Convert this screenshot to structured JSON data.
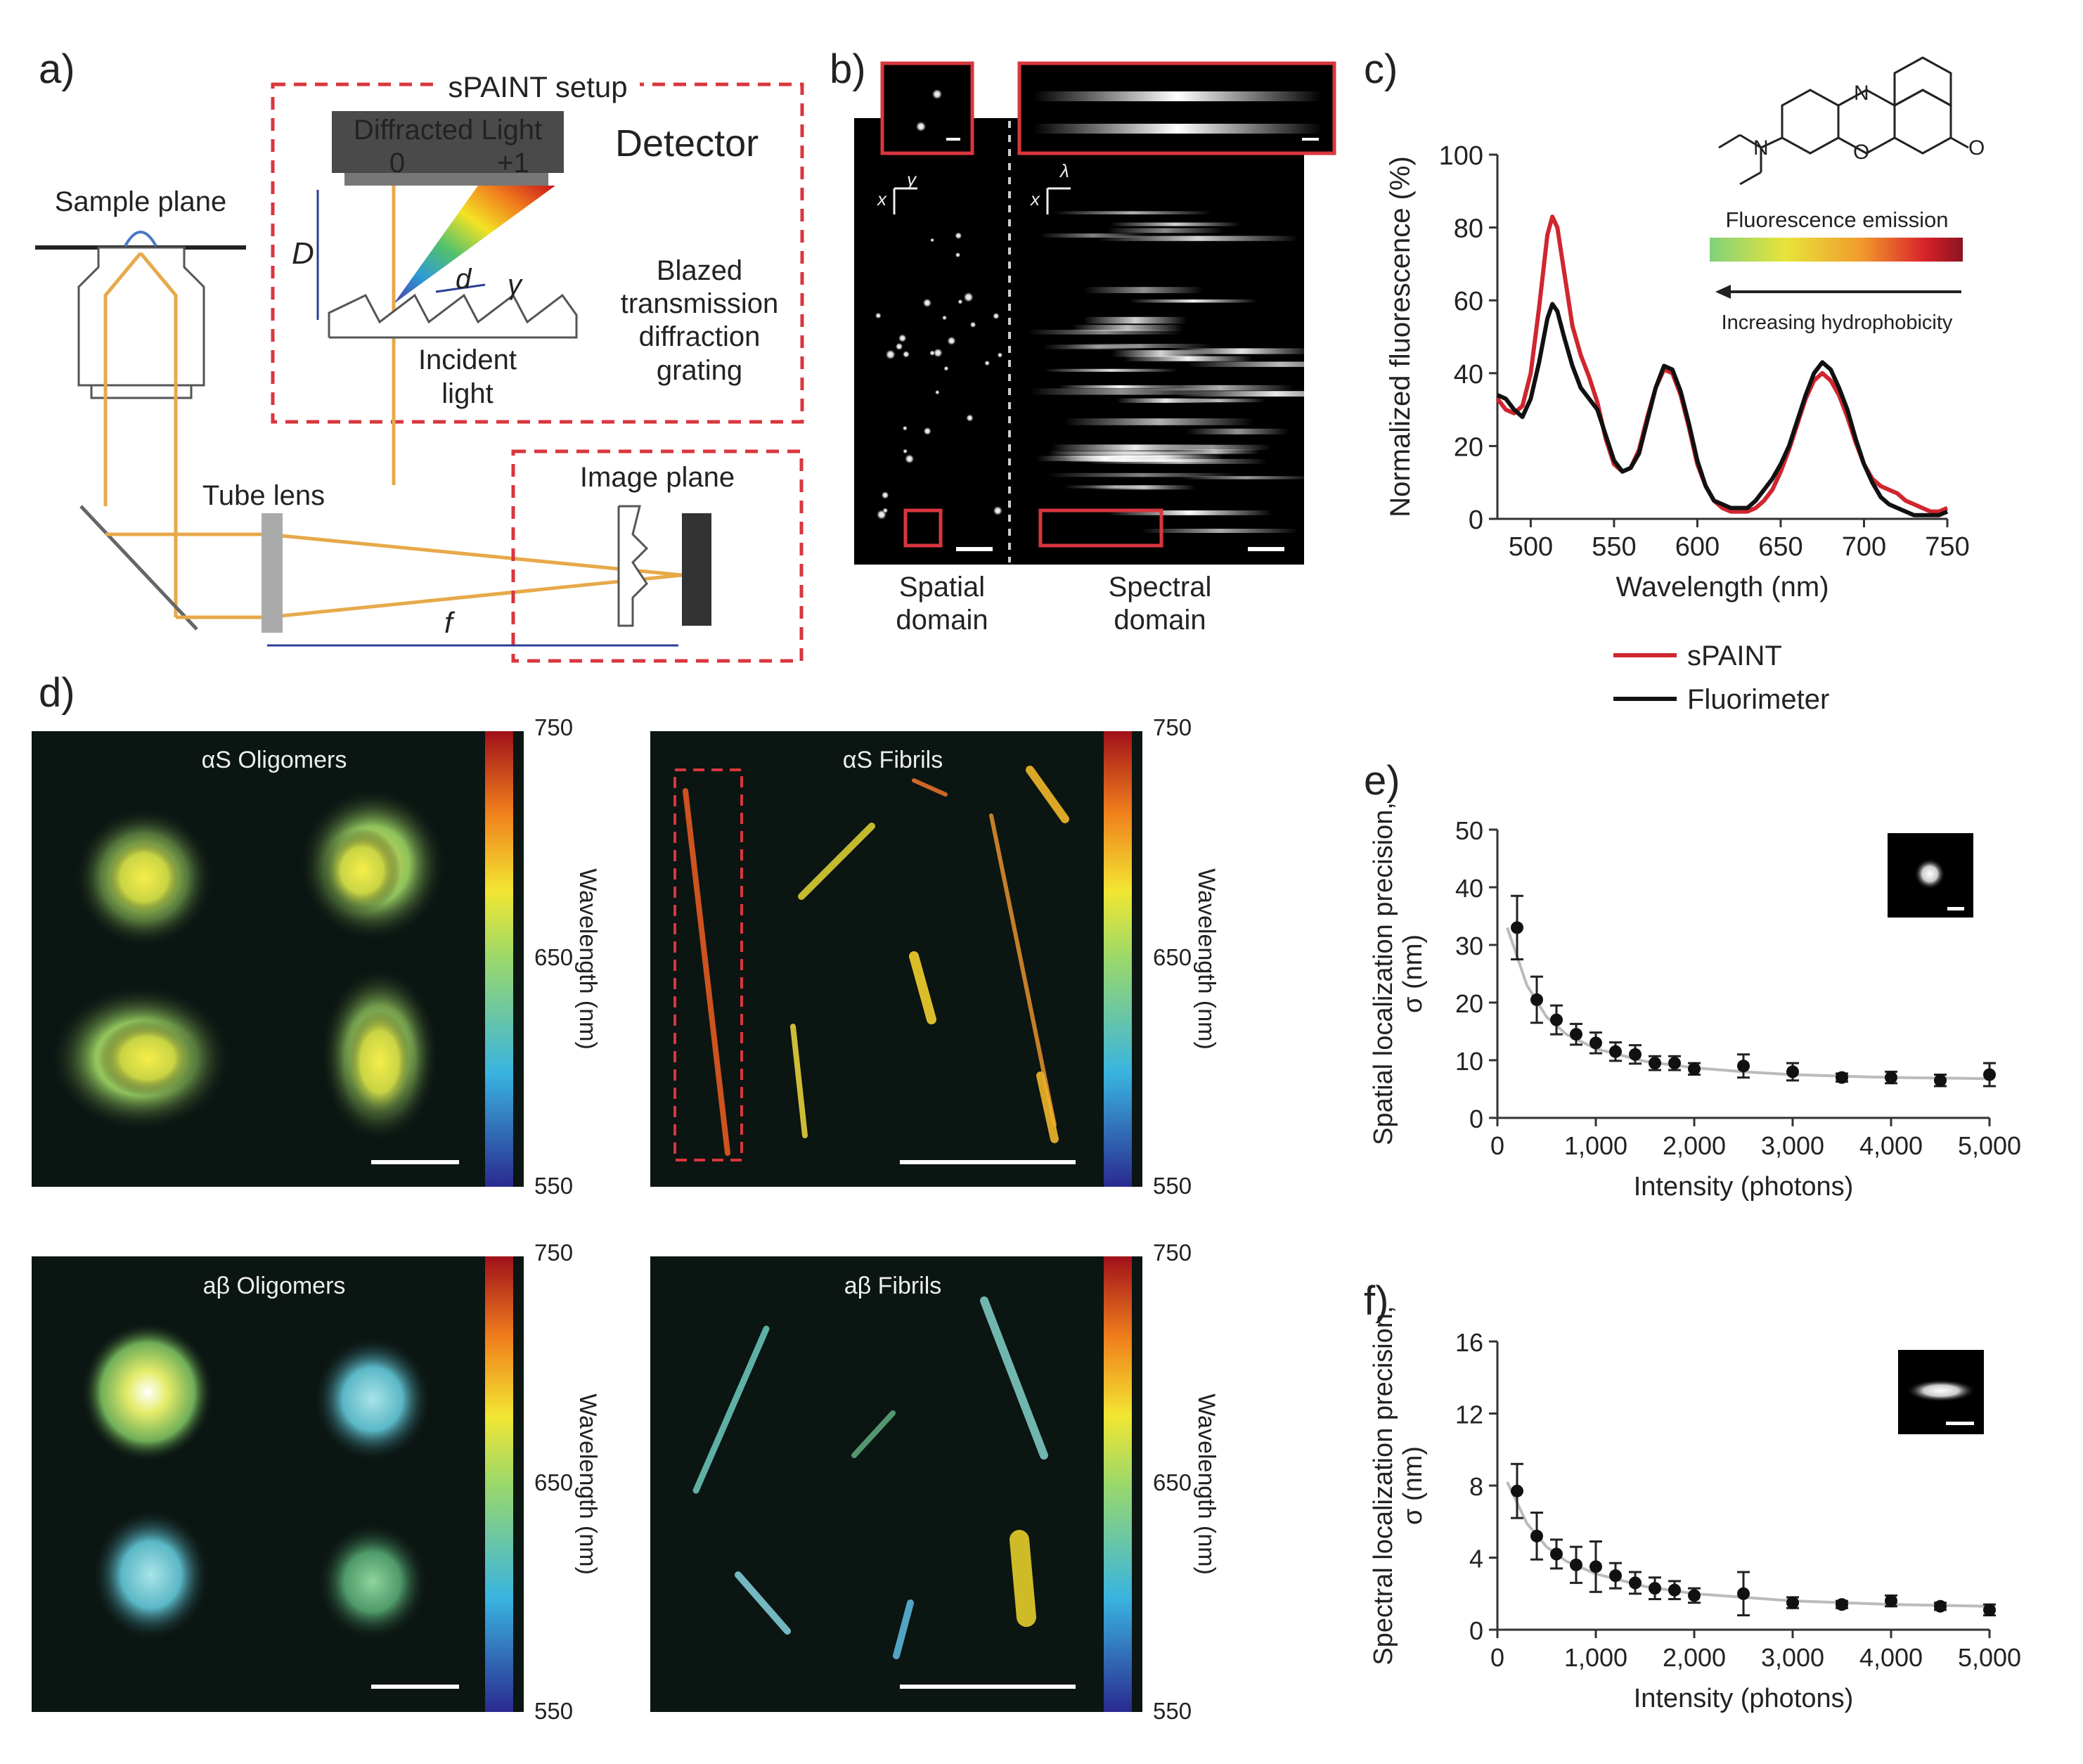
{
  "panels": {
    "a": {
      "label": "a)",
      "setup_title": "sPAINT setup",
      "detector_text": "Diffracted Light",
      "order0": "0",
      "order1": "+1",
      "detector": "Detector",
      "sample_plane": "Sample plane",
      "D": "D",
      "d": "d",
      "gamma": "γ",
      "incident1": "Incident",
      "incident2": "light",
      "grating1": "Blazed",
      "grating2": "transmission",
      "grating3": "diffraction",
      "grating4": "grating",
      "tube_lens": "Tube lens",
      "image_plane": "Image plane",
      "f": "f"
    },
    "b": {
      "label": "b)",
      "axis_y": "y",
      "axis_x": "x",
      "axis_lambda": "λ",
      "spatial1": "Spatial",
      "spatial2": "domain",
      "spectral1": "Spectral",
      "spectral2": "domain"
    },
    "c": {
      "label": "c)",
      "emission": "Fluorescence emission",
      "hydro": "Increasing hydrophobicity",
      "atom_N1": "N",
      "atom_N2": "N",
      "atom_O1": "O",
      "atom_O2": "O"
    },
    "d": {
      "label": "d)",
      "images": [
        {
          "title": "αS Oligomers",
          "cb_top": "750",
          "cb_mid": "650",
          "cb_bot": "550",
          "cb_label": "Wavelength (nm)"
        },
        {
          "title": "αS Fibrils",
          "cb_top": "750",
          "cb_mid": "650",
          "cb_bot": "550",
          "cb_label": "Wavelength (nm)"
        },
        {
          "title": "aβ Oligomers",
          "cb_top": "750",
          "cb_mid": "650",
          "cb_bot": "550",
          "cb_label": "Wavelength (nm)"
        },
        {
          "title": "aβ Fibrils",
          "cb_top": "750",
          "cb_mid": "650",
          "cb_bot": "550",
          "cb_label": "Wavelength (nm)"
        }
      ]
    },
    "e": {
      "label": "e)"
    },
    "f": {
      "label": "f)"
    }
  },
  "chart_data": [
    {
      "id": "c",
      "type": "line",
      "xlabel": "Wavelength (nm)",
      "ylabel": "Normalized fluorescence (%)",
      "xlim": [
        480,
        750
      ],
      "ylim": [
        0,
        100
      ],
      "xticks": [
        "500",
        "550",
        "600",
        "650",
        "700",
        "750"
      ],
      "yticks": [
        "0",
        "20",
        "40",
        "60",
        "80",
        "100"
      ],
      "legend_position": "bottom",
      "series": [
        {
          "name": "sPAINT",
          "color": "#d0262f",
          "x": [
            480,
            485,
            490,
            495,
            500,
            505,
            510,
            513,
            516,
            520,
            525,
            530,
            535,
            540,
            545,
            550,
            555,
            560,
            565,
            570,
            575,
            580,
            585,
            590,
            595,
            600,
            605,
            610,
            615,
            620,
            625,
            630,
            635,
            640,
            645,
            650,
            655,
            660,
            665,
            670,
            675,
            680,
            685,
            690,
            695,
            700,
            705,
            710,
            715,
            720,
            725,
            730,
            735,
            740,
            745,
            750
          ],
          "y": [
            33,
            30,
            29,
            31,
            40,
            58,
            78,
            83,
            80,
            68,
            53,
            45,
            39,
            32,
            22,
            15,
            13,
            14,
            19,
            28,
            36,
            41,
            40,
            34,
            25,
            15,
            9,
            5,
            3,
            2,
            2,
            2,
            3,
            5,
            8,
            13,
            19,
            26,
            33,
            38,
            40,
            38,
            34,
            28,
            21,
            15,
            11,
            9,
            8,
            7,
            5,
            4,
            3,
            2,
            2,
            3
          ]
        },
        {
          "name": "Fluorimeter",
          "color": "#111111",
          "x": [
            480,
            485,
            490,
            495,
            500,
            505,
            510,
            513,
            516,
            520,
            525,
            530,
            535,
            540,
            545,
            550,
            555,
            560,
            565,
            570,
            575,
            580,
            585,
            590,
            595,
            600,
            605,
            610,
            615,
            620,
            625,
            630,
            635,
            640,
            645,
            650,
            655,
            660,
            665,
            670,
            675,
            680,
            685,
            690,
            695,
            700,
            705,
            710,
            715,
            720,
            725,
            730,
            735,
            740,
            745,
            750
          ],
          "y": [
            34,
            33,
            30,
            28,
            33,
            43,
            55,
            59,
            57,
            50,
            42,
            36,
            33,
            30,
            23,
            16,
            13,
            14,
            18,
            27,
            36,
            42,
            41,
            35,
            26,
            16,
            9,
            5,
            4,
            3,
            3,
            3,
            5,
            8,
            11,
            15,
            20,
            27,
            34,
            40,
            43,
            41,
            36,
            30,
            22,
            15,
            10,
            6,
            4,
            3,
            2,
            1,
            1,
            1,
            1,
            2
          ]
        }
      ]
    },
    {
      "id": "e",
      "type": "scatter",
      "xlabel": "Intensity (photons)",
      "ylabel": "Spatial localization precision, σ (nm)",
      "xlim": [
        0,
        5000
      ],
      "ylim": [
        0,
        50
      ],
      "xticks": [
        "0",
        "1,000",
        "2,000",
        "3,000",
        "4,000",
        "5,000"
      ],
      "yticks": [
        "0",
        "10",
        "20",
        "30",
        "40",
        "50"
      ],
      "x": [
        200,
        400,
        600,
        800,
        1000,
        1200,
        1400,
        1600,
        1800,
        2000,
        2500,
        3000,
        3500,
        4000,
        4500,
        5000
      ],
      "y": [
        33,
        20.5,
        17,
        14.5,
        13,
        11.5,
        11,
        9.5,
        9.5,
        8.5,
        9,
        8,
        7,
        7,
        6.5,
        7.5
      ],
      "err": [
        5.5,
        4,
        2.5,
        1.8,
        1.8,
        1.6,
        1.6,
        1.2,
        1.2,
        1,
        2,
        1.5,
        0.7,
        1,
        1,
        2
      ],
      "fit_x": [
        100,
        300,
        500,
        700,
        1000,
        1500,
        2000,
        2500,
        3000,
        4000,
        5000
      ],
      "fit_y": [
        33,
        23,
        17.5,
        14.5,
        12,
        9.8,
        8.7,
        8,
        7.5,
        7,
        6.8
      ]
    },
    {
      "id": "f",
      "type": "scatter",
      "xlabel": "Intensity (photons)",
      "ylabel": "Spectral localization precision, σ (nm)",
      "xlim": [
        0,
        5000
      ],
      "ylim": [
        0,
        16
      ],
      "xticks": [
        "0",
        "1,000",
        "2,000",
        "3,000",
        "4,000",
        "5,000"
      ],
      "yticks": [
        "0",
        "4",
        "8",
        "12",
        "16"
      ],
      "x": [
        200,
        400,
        600,
        800,
        1000,
        1200,
        1400,
        1600,
        1800,
        2000,
        2500,
        3000,
        3500,
        4000,
        4500,
        5000
      ],
      "y": [
        7.7,
        5.2,
        4.2,
        3.6,
        3.5,
        3,
        2.6,
        2.3,
        2.2,
        1.9,
        2,
        1.5,
        1.4,
        1.6,
        1.3,
        1.1
      ],
      "err": [
        1.5,
        1.3,
        0.8,
        1,
        1.4,
        0.7,
        0.6,
        0.6,
        0.5,
        0.4,
        1.2,
        0.3,
        0.2,
        0.3,
        0.2,
        0.3
      ],
      "fit_x": [
        100,
        300,
        500,
        700,
        1000,
        1500,
        2000,
        2500,
        3000,
        4000,
        5000
      ],
      "fit_y": [
        8.2,
        5.9,
        4.6,
        3.8,
        3.1,
        2.4,
        2.0,
        1.8,
        1.6,
        1.4,
        1.3
      ]
    }
  ]
}
